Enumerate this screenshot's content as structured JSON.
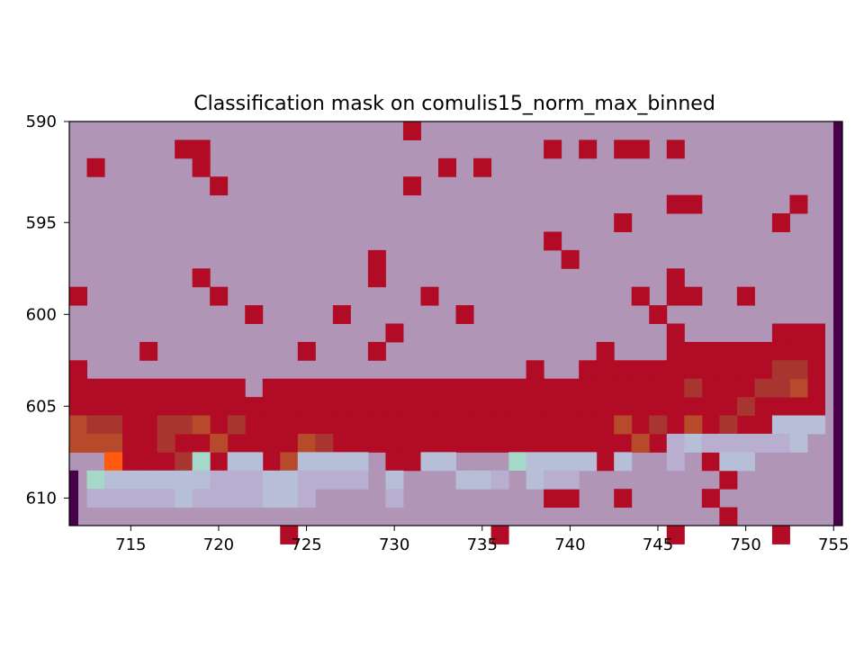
{
  "chart_data": {
    "type": "heatmap",
    "title": "Classification mask on comulis15_norm_max_binned",
    "xlabel": "",
    "ylabel": "",
    "xlim": [
      712,
      756
    ],
    "ylim": [
      612,
      590
    ],
    "xticks": [
      715,
      720,
      725,
      730,
      735,
      740,
      745,
      750,
      755
    ],
    "yticks": [
      590,
      595,
      600,
      605,
      610
    ],
    "colors": {
      "background": "#b195b7",
      "mask": "#b20b25",
      "edge": "#47004a",
      "heat_dark": "#a83530",
      "heat_mid": "#b84a2c",
      "heat_hot": "#ff5a10",
      "cool_light": "#b6bed8",
      "cool_mint": "#a5d8c8",
      "lilac": "#b8aed0"
    },
    "mask_cells": [
      [
        731,
        590
      ],
      [
        718,
        591
      ],
      [
        719,
        591
      ],
      [
        739,
        591
      ],
      [
        741,
        591
      ],
      [
        743,
        591
      ],
      [
        744,
        591
      ],
      [
        746,
        591
      ],
      [
        713,
        592
      ],
      [
        719,
        592
      ],
      [
        733,
        592
      ],
      [
        735,
        592
      ],
      [
        720,
        593
      ],
      [
        731,
        593
      ],
      [
        746,
        594
      ],
      [
        747,
        594
      ],
      [
        753,
        594
      ],
      [
        743,
        595
      ],
      [
        752,
        595
      ],
      [
        739,
        596
      ],
      [
        729,
        597
      ],
      [
        740,
        597
      ],
      [
        719,
        598
      ],
      [
        729,
        598
      ],
      [
        746,
        598
      ],
      [
        712,
        599
      ],
      [
        720,
        599
      ],
      [
        732,
        599
      ],
      [
        744,
        599
      ],
      [
        746,
        599
      ],
      [
        747,
        599
      ],
      [
        750,
        599
      ],
      [
        722,
        600
      ],
      [
        727,
        600
      ],
      [
        734,
        600
      ],
      [
        745,
        600
      ],
      [
        730,
        601
      ],
      [
        746,
        601
      ],
      [
        752,
        601
      ],
      [
        753,
        601
      ],
      [
        754,
        601
      ],
      [
        716,
        602
      ],
      [
        725,
        602
      ],
      [
        729,
        602
      ],
      [
        742,
        602
      ],
      [
        746,
        602
      ],
      [
        747,
        602
      ],
      [
        748,
        602
      ],
      [
        749,
        602
      ],
      [
        750,
        602
      ],
      [
        751,
        602
      ],
      [
        752,
        602
      ],
      [
        753,
        602
      ],
      [
        754,
        602
      ],
      [
        712,
        603
      ],
      [
        738,
        603
      ],
      [
        741,
        603
      ],
      [
        742,
        603
      ],
      [
        743,
        603
      ],
      [
        744,
        603
      ],
      [
        745,
        603
      ],
      [
        746,
        603
      ],
      [
        747,
        603
      ],
      [
        748,
        603
      ],
      [
        749,
        603
      ],
      [
        750,
        603
      ],
      [
        751,
        603
      ],
      [
        752,
        603
      ],
      [
        753,
        603
      ],
      [
        754,
        603
      ],
      [
        712,
        604
      ],
      [
        713,
        604
      ],
      [
        714,
        604
      ],
      [
        715,
        604
      ],
      [
        716,
        604
      ],
      [
        717,
        604
      ],
      [
        718,
        604
      ],
      [
        719,
        604
      ],
      [
        720,
        604
      ],
      [
        721,
        604
      ],
      [
        723,
        604
      ],
      [
        724,
        604
      ],
      [
        725,
        604
      ],
      [
        726,
        604
      ],
      [
        727,
        604
      ],
      [
        728,
        604
      ],
      [
        729,
        604
      ],
      [
        730,
        604
      ],
      [
        731,
        604
      ],
      [
        732,
        604
      ],
      [
        733,
        604
      ],
      [
        734,
        604
      ],
      [
        735,
        604
      ],
      [
        736,
        604
      ],
      [
        737,
        604
      ],
      [
        738,
        604
      ],
      [
        739,
        604
      ],
      [
        740,
        604
      ],
      [
        741,
        604
      ],
      [
        742,
        604
      ],
      [
        743,
        604
      ],
      [
        744,
        604
      ],
      [
        745,
        604
      ],
      [
        746,
        604
      ],
      [
        747,
        604
      ],
      [
        748,
        604
      ],
      [
        749,
        604
      ],
      [
        750,
        604
      ],
      [
        751,
        604
      ],
      [
        752,
        604
      ],
      [
        753,
        604
      ],
      [
        754,
        604
      ],
      [
        712,
        605
      ],
      [
        713,
        605
      ],
      [
        714,
        605
      ],
      [
        715,
        605
      ],
      [
        716,
        605
      ],
      [
        717,
        605
      ],
      [
        718,
        605
      ],
      [
        719,
        605
      ],
      [
        720,
        605
      ],
      [
        721,
        605
      ],
      [
        722,
        605
      ],
      [
        723,
        605
      ],
      [
        724,
        605
      ],
      [
        725,
        605
      ],
      [
        726,
        605
      ],
      [
        727,
        605
      ],
      [
        728,
        605
      ],
      [
        729,
        605
      ],
      [
        730,
        605
      ],
      [
        731,
        605
      ],
      [
        732,
        605
      ],
      [
        733,
        605
      ],
      [
        734,
        605
      ],
      [
        735,
        605
      ],
      [
        736,
        605
      ],
      [
        737,
        605
      ],
      [
        738,
        605
      ],
      [
        739,
        605
      ],
      [
        740,
        605
      ],
      [
        741,
        605
      ],
      [
        742,
        605
      ],
      [
        743,
        605
      ],
      [
        744,
        605
      ],
      [
        745,
        605
      ],
      [
        746,
        605
      ],
      [
        747,
        605
      ],
      [
        748,
        605
      ],
      [
        749,
        605
      ],
      [
        750,
        605
      ],
      [
        751,
        605
      ],
      [
        752,
        605
      ],
      [
        753,
        605
      ],
      [
        754,
        605
      ],
      [
        712,
        606
      ],
      [
        713,
        606
      ],
      [
        714,
        606
      ],
      [
        715,
        606
      ],
      [
        716,
        606
      ],
      [
        717,
        606
      ],
      [
        718,
        606
      ],
      [
        719,
        606
      ],
      [
        720,
        606
      ],
      [
        721,
        606
      ],
      [
        722,
        606
      ],
      [
        723,
        606
      ],
      [
        724,
        606
      ],
      [
        725,
        606
      ],
      [
        726,
        606
      ],
      [
        727,
        606
      ],
      [
        728,
        606
      ],
      [
        729,
        606
      ],
      [
        730,
        606
      ],
      [
        731,
        606
      ],
      [
        732,
        606
      ],
      [
        733,
        606
      ],
      [
        734,
        606
      ],
      [
        735,
        606
      ],
      [
        736,
        606
      ],
      [
        737,
        606
      ],
      [
        738,
        606
      ],
      [
        739,
        606
      ],
      [
        740,
        606
      ],
      [
        741,
        606
      ],
      [
        742,
        606
      ],
      [
        743,
        606
      ],
      [
        744,
        606
      ],
      [
        745,
        606
      ],
      [
        746,
        606
      ],
      [
        747,
        606
      ],
      [
        748,
        606
      ],
      [
        749,
        606
      ],
      [
        750,
        606
      ],
      [
        751,
        606
      ],
      [
        712,
        607
      ],
      [
        713,
        607
      ],
      [
        714,
        607
      ],
      [
        715,
        607
      ],
      [
        716,
        607
      ],
      [
        717,
        607
      ],
      [
        718,
        607
      ],
      [
        719,
        607
      ],
      [
        720,
        607
      ],
      [
        721,
        607
      ],
      [
        722,
        607
      ],
      [
        723,
        607
      ],
      [
        724,
        607
      ],
      [
        725,
        607
      ],
      [
        726,
        607
      ],
      [
        727,
        607
      ],
      [
        728,
        607
      ],
      [
        729,
        607
      ],
      [
        730,
        607
      ],
      [
        731,
        607
      ],
      [
        732,
        607
      ],
      [
        733,
        607
      ],
      [
        734,
        607
      ],
      [
        735,
        607
      ],
      [
        736,
        607
      ],
      [
        737,
        607
      ],
      [
        738,
        607
      ],
      [
        739,
        607
      ],
      [
        740,
        607
      ],
      [
        741,
        607
      ],
      [
        742,
        607
      ],
      [
        743,
        607
      ],
      [
        744,
        607
      ],
      [
        745,
        607
      ],
      [
        714,
        608
      ],
      [
        715,
        608
      ],
      [
        716,
        608
      ],
      [
        717,
        608
      ],
      [
        718,
        608
      ],
      [
        720,
        608
      ],
      [
        723,
        608
      ],
      [
        724,
        608
      ],
      [
        730,
        608
      ],
      [
        731,
        608
      ],
      [
        737,
        608
      ],
      [
        742,
        608
      ],
      [
        748,
        608
      ],
      [
        749,
        609
      ],
      [
        739,
        610
      ],
      [
        740,
        610
      ],
      [
        743,
        610
      ],
      [
        748,
        610
      ],
      [
        749,
        611
      ],
      [
        724,
        612
      ],
      [
        736,
        612
      ],
      [
        746,
        612
      ],
      [
        752,
        612
      ]
    ],
    "heat_cells": [
      [
        712,
        606,
        "heat_mid"
      ],
      [
        713,
        606,
        "heat_dark"
      ],
      [
        714,
        606,
        "heat_dark"
      ],
      [
        717,
        606,
        "heat_dark"
      ],
      [
        718,
        606,
        "heat_dark"
      ],
      [
        719,
        606,
        "heat_mid"
      ],
      [
        721,
        606,
        "heat_dark"
      ],
      [
        743,
        606,
        "heat_mid"
      ],
      [
        745,
        606,
        "heat_dark"
      ],
      [
        747,
        606,
        "heat_mid"
      ],
      [
        749,
        606,
        "heat_dark"
      ],
      [
        712,
        607,
        "heat_mid"
      ],
      [
        713,
        607,
        "heat_mid"
      ],
      [
        714,
        607,
        "heat_mid"
      ],
      [
        717,
        607,
        "heat_dark"
      ],
      [
        720,
        607,
        "heat_mid"
      ],
      [
        725,
        607,
        "heat_mid"
      ],
      [
        726,
        607,
        "heat_dark"
      ],
      [
        744,
        607,
        "heat_mid"
      ],
      [
        714,
        608,
        "heat_hot"
      ],
      [
        718,
        608,
        "heat_dark"
      ],
      [
        724,
        608,
        "heat_mid"
      ],
      [
        753,
        604,
        "heat_mid"
      ],
      [
        750,
        605,
        "heat_dark"
      ],
      [
        751,
        604,
        "heat_dark"
      ],
      [
        752,
        603,
        "heat_dark"
      ],
      [
        753,
        603,
        "heat_dark"
      ],
      [
        752,
        604,
        "heat_dark"
      ],
      [
        747,
        604,
        "heat_dark"
      ]
    ],
    "cool_cells": [
      [
        752,
        606,
        "cool_light"
      ],
      [
        753,
        606,
        "cool_light"
      ],
      [
        754,
        606,
        "cool_light"
      ],
      [
        746,
        607,
        "lilac"
      ],
      [
        747,
        607,
        "cool_light"
      ],
      [
        748,
        607,
        "lilac"
      ],
      [
        749,
        607,
        "lilac"
      ],
      [
        750,
        607,
        "lilac"
      ],
      [
        751,
        607,
        "lilac"
      ],
      [
        752,
        607,
        "lilac"
      ],
      [
        753,
        607,
        "cool_light"
      ],
      [
        719,
        608,
        "cool_mint"
      ],
      [
        721,
        608,
        "cool_light"
      ],
      [
        722,
        608,
        "cool_light"
      ],
      [
        725,
        608,
        "cool_light"
      ],
      [
        726,
        608,
        "cool_light"
      ],
      [
        727,
        608,
        "cool_light"
      ],
      [
        728,
        608,
        "cool_light"
      ],
      [
        732,
        608,
        "cool_light"
      ],
      [
        733,
        608,
        "cool_light"
      ],
      [
        737,
        608,
        "cool_mint"
      ],
      [
        738,
        608,
        "cool_light"
      ],
      [
        739,
        608,
        "cool_light"
      ],
      [
        740,
        608,
        "cool_light"
      ],
      [
        741,
        608,
        "cool_light"
      ],
      [
        743,
        608,
        "cool_light"
      ],
      [
        746,
        608,
        "lilac"
      ],
      [
        749,
        608,
        "cool_light"
      ],
      [
        750,
        608,
        "cool_light"
      ],
      [
        713,
        609,
        "cool_mint"
      ],
      [
        714,
        609,
        "cool_light"
      ],
      [
        715,
        609,
        "cool_light"
      ],
      [
        716,
        609,
        "cool_light"
      ],
      [
        717,
        609,
        "cool_light"
      ],
      [
        718,
        609,
        "cool_light"
      ],
      [
        719,
        609,
        "cool_light"
      ],
      [
        720,
        609,
        "lilac"
      ],
      [
        721,
        609,
        "lilac"
      ],
      [
        722,
        609,
        "lilac"
      ],
      [
        723,
        609,
        "cool_light"
      ],
      [
        724,
        609,
        "cool_light"
      ],
      [
        725,
        609,
        "lilac"
      ],
      [
        726,
        609,
        "lilac"
      ],
      [
        727,
        609,
        "lilac"
      ],
      [
        728,
        609,
        "lilac"
      ],
      [
        730,
        609,
        "cool_light"
      ],
      [
        734,
        609,
        "cool_light"
      ],
      [
        735,
        609,
        "cool_light"
      ],
      [
        736,
        609,
        "lilac"
      ],
      [
        738,
        609,
        "cool_light"
      ],
      [
        739,
        609,
        "lilac"
      ],
      [
        740,
        609,
        "lilac"
      ],
      [
        713,
        610,
        "lilac"
      ],
      [
        714,
        610,
        "lilac"
      ],
      [
        715,
        610,
        "lilac"
      ],
      [
        716,
        610,
        "lilac"
      ],
      [
        717,
        610,
        "lilac"
      ],
      [
        718,
        610,
        "cool_light"
      ],
      [
        719,
        610,
        "lilac"
      ],
      [
        720,
        610,
        "lilac"
      ],
      [
        721,
        610,
        "lilac"
      ],
      [
        722,
        610,
        "lilac"
      ],
      [
        723,
        610,
        "cool_light"
      ],
      [
        724,
        610,
        "cool_light"
      ],
      [
        725,
        610,
        "lilac"
      ],
      [
        730,
        610,
        "lilac"
      ]
    ]
  }
}
